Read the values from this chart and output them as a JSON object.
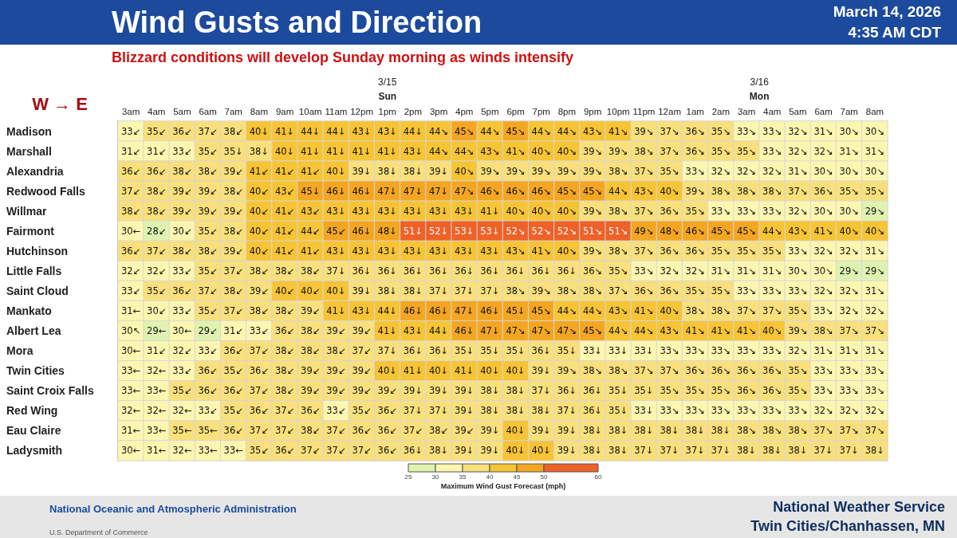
{
  "chart_data": {
    "type": "heatmap",
    "title": "Wind Gusts and Direction",
    "subtitle": "Blizzard conditions will develop Sunday morning as winds intensify",
    "annotations": [
      "W → E",
      "3/15",
      "Sun",
      "3/16",
      "Mon",
      "March 14, 2026",
      "4:35 AM CDT",
      "National Oceanic and Atmospheric Administration",
      "U.S. Department of Commerce",
      "National Weather Service",
      "Twin Cities/Chanhassen, MN"
    ],
    "categories": [
      "3am",
      "4am",
      "5am",
      "6am",
      "7am",
      "8am",
      "9am",
      "10am",
      "11am",
      "12pm",
      "1pm",
      "2pm",
      "3pm",
      "4pm",
      "5pm",
      "6pm",
      "7pm",
      "8pm",
      "9pm",
      "10pm",
      "11pm",
      "12am",
      "1am",
      "2am",
      "3am",
      "4am",
      "5am",
      "6am",
      "7am",
      "8am"
    ],
    "y_categories": [
      "Madison",
      "Marshall",
      "Alexandria",
      "Redwood Falls",
      "Willmar",
      "Fairmont",
      "Hutchinson",
      "Little Falls",
      "Saint Cloud",
      "Mankato",
      "Albert Lea",
      "Mora",
      "Twin Cities",
      "Saint Croix Falls",
      "Red Wing",
      "Eau Claire",
      "Ladysmith"
    ],
    "cells": [
      [
        33,
        35,
        36,
        37,
        38,
        40,
        41,
        44,
        44,
        43,
        43,
        44,
        44,
        45,
        44,
        45,
        44,
        44,
        43,
        41,
        39,
        37,
        36,
        35,
        33,
        33,
        32,
        31,
        30,
        30
      ],
      [
        31,
        31,
        33,
        35,
        35,
        38,
        40,
        41,
        41,
        41,
        41,
        43,
        44,
        44,
        43,
        41,
        40,
        40,
        39,
        39,
        38,
        37,
        36,
        35,
        35,
        33,
        32,
        32,
        31,
        31
      ],
      [
        36,
        36,
        38,
        38,
        39,
        41,
        41,
        41,
        40,
        39,
        38,
        38,
        39,
        40,
        39,
        39,
        39,
        39,
        39,
        38,
        37,
        35,
        33,
        32,
        32,
        32,
        31,
        30,
        30,
        30
      ],
      [
        37,
        38,
        39,
        39,
        38,
        40,
        43,
        45,
        46,
        46,
        47,
        47,
        47,
        47,
        46,
        46,
        46,
        45,
        45,
        44,
        43,
        40,
        39,
        38,
        38,
        38,
        37,
        36,
        35,
        35
      ],
      [
        38,
        38,
        39,
        39,
        39,
        40,
        41,
        43,
        43,
        43,
        43,
        43,
        43,
        43,
        41,
        40,
        40,
        40,
        39,
        38,
        37,
        36,
        35,
        33,
        33,
        33,
        32,
        30,
        30,
        29
      ],
      [
        30,
        28,
        30,
        35,
        38,
        40,
        41,
        44,
        45,
        46,
        48,
        51,
        52,
        53,
        53,
        52,
        52,
        52,
        51,
        51,
        49,
        48,
        46,
        45,
        45,
        44,
        43,
        41,
        40,
        40
      ],
      [
        36,
        37,
        38,
        38,
        39,
        40,
        41,
        41,
        43,
        43,
        43,
        43,
        43,
        43,
        43,
        43,
        41,
        40,
        39,
        38,
        37,
        36,
        36,
        35,
        35,
        35,
        33,
        32,
        32,
        31
      ],
      [
        32,
        32,
        33,
        35,
        37,
        38,
        38,
        38,
        37,
        36,
        36,
        36,
        36,
        36,
        36,
        36,
        36,
        36,
        36,
        35,
        33,
        32,
        32,
        31,
        31,
        31,
        30,
        30,
        29,
        29
      ],
      [
        33,
        35,
        36,
        37,
        38,
        39,
        40,
        40,
        40,
        39,
        38,
        38,
        37,
        37,
        37,
        38,
        39,
        38,
        38,
        37,
        36,
        36,
        35,
        35,
        33,
        33,
        33,
        32,
        32,
        31
      ],
      [
        31,
        30,
        33,
        35,
        37,
        38,
        38,
        39,
        41,
        43,
        44,
        46,
        46,
        47,
        46,
        45,
        45,
        44,
        44,
        43,
        41,
        40,
        38,
        38,
        37,
        37,
        35,
        33,
        32,
        32
      ],
      [
        30,
        29,
        30,
        29,
        31,
        33,
        36,
        38,
        39,
        39,
        41,
        43,
        44,
        46,
        47,
        47,
        47,
        47,
        45,
        44,
        44,
        43,
        41,
        41,
        41,
        40,
        39,
        38,
        37,
        37
      ],
      [
        30,
        31,
        32,
        33,
        36,
        37,
        38,
        38,
        38,
        37,
        37,
        36,
        36,
        35,
        35,
        35,
        36,
        35,
        33,
        33,
        33,
        33,
        33,
        33,
        33,
        33,
        32,
        31,
        31,
        31
      ],
      [
        33,
        32,
        33,
        36,
        35,
        36,
        38,
        39,
        39,
        39,
        40,
        41,
        40,
        41,
        40,
        40,
        39,
        39,
        38,
        38,
        37,
        37,
        36,
        36,
        36,
        36,
        35,
        33,
        33,
        33
      ],
      [
        33,
        33,
        35,
        36,
        36,
        37,
        38,
        39,
        39,
        39,
        39,
        39,
        39,
        39,
        38,
        38,
        37,
        36,
        36,
        35,
        35,
        35,
        35,
        35,
        36,
        36,
        35,
        33,
        33,
        33
      ],
      [
        32,
        32,
        32,
        33,
        35,
        36,
        37,
        36,
        33,
        35,
        36,
        37,
        37,
        39,
        38,
        38,
        38,
        37,
        36,
        35,
        33,
        33,
        33,
        33,
        33,
        33,
        33,
        32,
        32,
        32
      ],
      [
        31,
        33,
        35,
        35,
        36,
        37,
        37,
        38,
        37,
        36,
        36,
        37,
        38,
        39,
        39,
        40,
        39,
        39,
        38,
        38,
        38,
        38,
        38,
        38,
        38,
        38,
        38,
        37,
        37,
        37
      ],
      [
        30,
        31,
        32,
        33,
        33,
        35,
        36,
        37,
        37,
        37,
        36,
        36,
        38,
        39,
        39,
        40,
        40,
        39,
        38,
        38,
        37,
        37,
        37,
        37,
        38,
        38,
        38,
        37,
        37,
        38
      ]
    ],
    "cell_labels": [
      [
        "33↙",
        "35↙",
        "36↙",
        "37↙",
        "38↙",
        "40↓",
        "41↓",
        "44↓",
        "44↓",
        "43↓",
        "43↓",
        "44↓",
        "44↘",
        "45↘",
        "44↘",
        "45↘",
        "44↘",
        "44↘",
        "43↘",
        "41↘",
        "39↘",
        "37↘",
        "36↘",
        "35↘",
        "33↘",
        "33↘",
        "32↘",
        "31↘",
        "30↘",
        "30↘"
      ],
      [
        "31↙",
        "31↙",
        "33↙",
        "35↙",
        "35↓",
        "38↓",
        "40↓",
        "41↓",
        "41↓",
        "41↓",
        "41↓",
        "43↓",
        "44↘",
        "44↘",
        "43↘",
        "41↘",
        "40↘",
        "40↘",
        "39↘",
        "39↘",
        "38↘",
        "37↘",
        "36↘",
        "35↘",
        "35↘",
        "33↘",
        "32↘",
        "32↘",
        "31↘",
        "31↘"
      ],
      [
        "36↙",
        "36↙",
        "38↙",
        "38↙",
        "39↙",
        "41↙",
        "41↙",
        "41↙",
        "40↓",
        "39↓",
        "38↓",
        "38↓",
        "39↓",
        "40↘",
        "39↘",
        "39↘",
        "39↘",
        "39↘",
        "39↘",
        "38↘",
        "37↘",
        "35↘",
        "33↘",
        "32↘",
        "32↘",
        "32↘",
        "31↘",
        "30↘",
        "30↘",
        "30↘"
      ],
      [
        "37↙",
        "38↙",
        "39↙",
        "39↙",
        "38↙",
        "40↙",
        "43↙",
        "45↓",
        "46↓",
        "46↓",
        "47↓",
        "47↓",
        "47↓",
        "47↘",
        "46↘",
        "46↘",
        "46↘",
        "45↘",
        "45↘",
        "44↘",
        "43↘",
        "40↘",
        "39↘",
        "38↘",
        "38↘",
        "38↘",
        "37↘",
        "36↘",
        "35↘",
        "35↘"
      ],
      [
        "38↙",
        "38↙",
        "39↙",
        "39↙",
        "39↙",
        "40↙",
        "41↙",
        "43↙",
        "43↓",
        "43↓",
        "43↓",
        "43↓",
        "43↓",
        "43↓",
        "41↓",
        "40↘",
        "40↘",
        "40↘",
        "39↘",
        "38↘",
        "37↘",
        "36↘",
        "35↘",
        "33↘",
        "33↘",
        "33↘",
        "32↘",
        "30↘",
        "30↘",
        "29↘"
      ],
      [
        "30←",
        "28↙",
        "30↙",
        "35↙",
        "38↙",
        "40↙",
        "41↙",
        "44↙",
        "45↙",
        "46↓",
        "48↓",
        "51↓",
        "52↓",
        "53↓",
        "53↓",
        "52↘",
        "52↘",
        "52↘",
        "51↘",
        "51↘",
        "49↘",
        "48↘",
        "46↘",
        "45↘",
        "45↘",
        "44↘",
        "43↘",
        "41↘",
        "40↘",
        "40↘"
      ],
      [
        "36↙",
        "37↙",
        "38↙",
        "38↙",
        "39↙",
        "40↙",
        "41↙",
        "41↙",
        "43↓",
        "43↓",
        "43↓",
        "43↓",
        "43↓",
        "43↓",
        "43↓",
        "43↘",
        "41↘",
        "40↘",
        "39↘",
        "38↘",
        "37↘",
        "36↘",
        "36↘",
        "35↘",
        "35↘",
        "35↘",
        "33↘",
        "32↘",
        "32↘",
        "31↘"
      ],
      [
        "32↙",
        "32↙",
        "33↙",
        "35↙",
        "37↙",
        "38↙",
        "38↙",
        "38↙",
        "37↓",
        "36↓",
        "36↓",
        "36↓",
        "36↓",
        "36↓",
        "36↓",
        "36↓",
        "36↓",
        "36↓",
        "36↘",
        "35↘",
        "33↘",
        "32↘",
        "32↘",
        "31↘",
        "31↘",
        "31↘",
        "30↘",
        "30↘",
        "29↘",
        "29↘"
      ],
      [
        "33↙",
        "35↙",
        "36↙",
        "37↙",
        "38↙",
        "39↙",
        "40↙",
        "40↙",
        "40↓",
        "39↓",
        "38↓",
        "38↓",
        "37↓",
        "37↓",
        "37↓",
        "38↘",
        "39↘",
        "38↘",
        "38↘",
        "37↘",
        "36↘",
        "36↘",
        "35↘",
        "35↘",
        "33↘",
        "33↘",
        "33↘",
        "32↘",
        "32↘",
        "31↘"
      ],
      [
        "31←",
        "30↙",
        "33↙",
        "35↙",
        "37↙",
        "38↙",
        "38↙",
        "39↙",
        "41↓",
        "43↓",
        "44↓",
        "46↓",
        "46↓",
        "47↓",
        "46↓",
        "45↓",
        "45↘",
        "44↘",
        "44↘",
        "43↘",
        "41↘",
        "40↘",
        "38↘",
        "38↘",
        "37↘",
        "37↘",
        "35↘",
        "33↘",
        "32↘",
        "32↘"
      ],
      [
        "30↖",
        "29←",
        "30←",
        "29↙",
        "31↙",
        "33↙",
        "36↙",
        "38↙",
        "39↙",
        "39↙",
        "41↓",
        "43↓",
        "44↓",
        "46↓",
        "47↓",
        "47↘",
        "47↘",
        "47↘",
        "45↘",
        "44↘",
        "44↘",
        "43↘",
        "41↘",
        "41↘",
        "41↘",
        "40↘",
        "39↘",
        "38↘",
        "37↘",
        "37↘"
      ],
      [
        "30←",
        "31↙",
        "32↙",
        "33↙",
        "36↙",
        "37↙",
        "38↙",
        "38↙",
        "38↙",
        "37↙",
        "37↓",
        "36↓",
        "36↓",
        "35↓",
        "35↓",
        "35↓",
        "36↓",
        "35↓",
        "33↓",
        "33↓",
        "33↓",
        "33↘",
        "33↘",
        "33↘",
        "33↘",
        "33↘",
        "32↘",
        "31↘",
        "31↘",
        "31↘"
      ],
      [
        "33←",
        "32←",
        "33↙",
        "36↙",
        "35↙",
        "36↙",
        "38↙",
        "39↙",
        "39↙",
        "39↙",
        "40↓",
        "41↓",
        "40↓",
        "41↓",
        "40↓",
        "40↓",
        "39↓",
        "39↘",
        "38↘",
        "38↘",
        "37↘",
        "37↘",
        "36↘",
        "36↘",
        "36↘",
        "36↘",
        "35↘",
        "33↘",
        "33↘",
        "33↘"
      ],
      [
        "33←",
        "33←",
        "35↙",
        "36↙",
        "36↙",
        "37↙",
        "38↙",
        "39↙",
        "39↙",
        "39↙",
        "39↙",
        "39↓",
        "39↓",
        "39↓",
        "38↓",
        "38↓",
        "37↓",
        "36↓",
        "36↓",
        "35↓",
        "35↓",
        "35↘",
        "35↘",
        "35↘",
        "36↘",
        "36↘",
        "35↘",
        "33↘",
        "33↘",
        "33↘"
      ],
      [
        "32←",
        "32←",
        "32←",
        "33↙",
        "35↙",
        "36↙",
        "37↙",
        "36↙",
        "33↙",
        "35↙",
        "36↙",
        "37↓",
        "37↓",
        "39↓",
        "38↓",
        "38↓",
        "38↓",
        "37↓",
        "36↓",
        "35↓",
        "33↓",
        "33↘",
        "33↘",
        "33↘",
        "33↘",
        "33↘",
        "33↘",
        "32↘",
        "32↘",
        "32↘"
      ],
      [
        "31←",
        "33←",
        "35←",
        "35←",
        "36↙",
        "37↙",
        "37↙",
        "38↙",
        "37↙",
        "36↙",
        "36↙",
        "37↙",
        "38↙",
        "39↙",
        "39↓",
        "40↓",
        "39↓",
        "39↓",
        "38↓",
        "38↓",
        "38↓",
        "38↓",
        "38↓",
        "38↓",
        "38↘",
        "38↘",
        "38↘",
        "37↘",
        "37↘",
        "37↘"
      ],
      [
        "30←",
        "31←",
        "32←",
        "33←",
        "33←",
        "35↙",
        "36↙",
        "37↙",
        "37↙",
        "37↙",
        "36↙",
        "36↓",
        "38↓",
        "39↓",
        "39↓",
        "40↓",
        "40↓",
        "39↓",
        "38↓",
        "38↓",
        "37↓",
        "37↓",
        "37↓",
        "37↓",
        "38↓",
        "38↓",
        "38↓",
        "37↓",
        "37↓",
        "38↓"
      ]
    ],
    "clim": [
      25,
      60
    ],
    "cticks": [
      25,
      30,
      35,
      40,
      45,
      50,
      60
    ],
    "clabel": "Maximum Wind Gust Forecast (mph)"
  }
}
